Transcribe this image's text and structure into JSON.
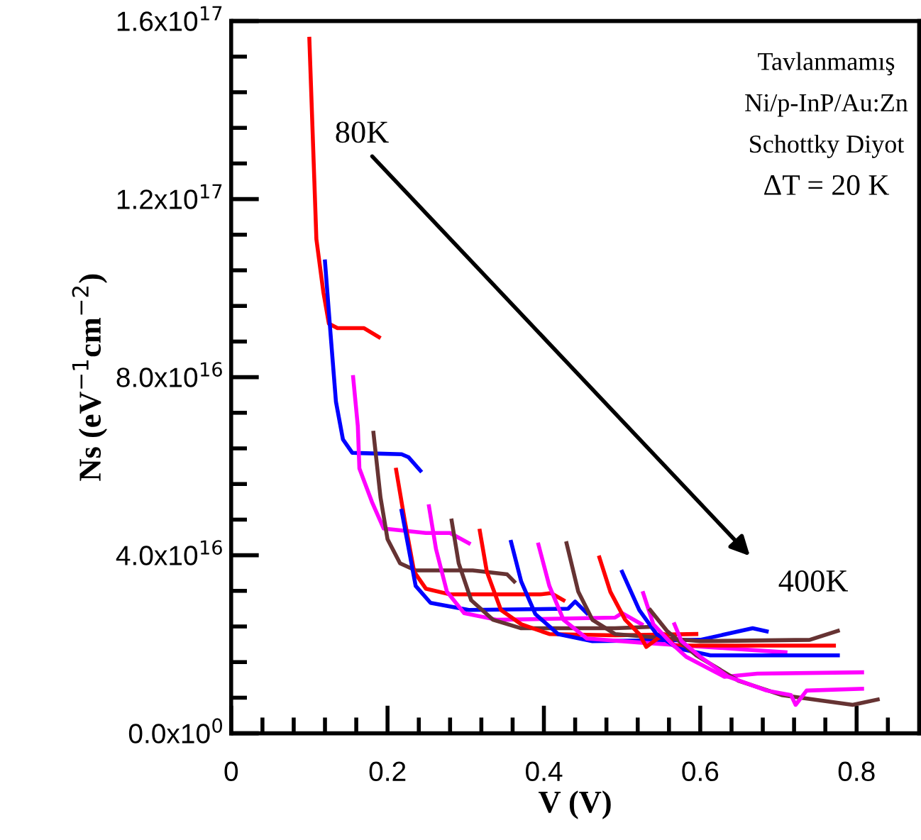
{
  "chart_data": {
    "type": "line",
    "xlabel": "V (V)",
    "ylabel": "Ns (eV$^{−1}$cm$^{−2}$)",
    "xlim": [
      0,
      0.88
    ],
    "ylim": [
      0,
      1.6e+17
    ],
    "xticks": [
      0,
      {
        "value": 0.04,
        "label": null
      },
      {
        "value": 0.08,
        "label": null
      },
      {
        "value": 0.12,
        "label": null
      },
      {
        "value": 0.16,
        "label": null
      },
      0.2,
      {
        "value": 0.24,
        "label": null
      },
      {
        "value": 0.28,
        "label": null
      },
      {
        "value": 0.32,
        "label": null
      },
      {
        "value": 0.36,
        "label": null
      },
      0.4,
      {
        "value": 0.44,
        "label": null
      },
      {
        "value": 0.48,
        "label": null
      },
      {
        "value": 0.52,
        "label": null
      },
      {
        "value": 0.56,
        "label": null
      },
      0.6,
      {
        "value": 0.64,
        "label": null
      },
      {
        "value": 0.68,
        "label": null
      },
      {
        "value": 0.72,
        "label": null
      },
      {
        "value": 0.76,
        "label": null
      },
      0.8,
      {
        "value": 0.84,
        "label": null
      }
    ],
    "yticks": [
      {
        "value": 0,
        "label": "0.0x10$^{0}$"
      },
      {
        "value": 8000000000000000.0,
        "label": null
      },
      {
        "value": 1.6e+16,
        "label": null
      },
      {
        "value": 2.4e+16,
        "label": null
      },
      {
        "value": 3.2e+16,
        "label": null
      },
      {
        "value": 4e+16,
        "label": "4.0x10$^{16}$"
      },
      {
        "value": 4.8e+16,
        "label": null
      },
      {
        "value": 5.6e+16,
        "label": null
      },
      {
        "value": 6.4e+16,
        "label": null
      },
      {
        "value": 7.2e+16,
        "label": null
      },
      {
        "value": 8e+16,
        "label": "8.0x10$^{16}$"
      },
      {
        "value": 8.8e+16,
        "label": null
      },
      {
        "value": 9.6e+16,
        "label": null
      },
      {
        "value": 1.04e+17,
        "label": null
      },
      {
        "value": 1.12e+17,
        "label": null
      },
      {
        "value": 1.2e+17,
        "label": "1.2x10$^{17}$"
      },
      {
        "value": 1.28e+17,
        "label": null
      },
      {
        "value": 1.36e+17,
        "label": null
      },
      {
        "value": 1.44e+17,
        "label": null
      },
      {
        "value": 1.52e+17,
        "label": null
      },
      {
        "value": 1.6e+17,
        "label": "1.6x10$^{17}$"
      }
    ],
    "grid": false,
    "legend": false,
    "marker": "none",
    "line_style": "solid",
    "annotations": [
      "Tavlanmamış",
      "Ni/p-InP/Au:Zn",
      "Schottky Diyot",
      "ΔT = 20 K",
      "80K",
      "400K"
    ],
    "series": [
      {
        "color": "#ff0000",
        "x": [
          0.1,
          0.109,
          0.118,
          0.125,
          0.136,
          0.17,
          0.189
        ],
        "values": [
          1.56e+17,
          1.11e+17,
          9.9e+16,
          9.2e+16,
          9.1e+16,
          9.1e+16,
          8.9e+16
        ]
      },
      {
        "color": "#0000ff",
        "x": [
          0.12,
          0.127,
          0.134,
          0.143,
          0.155,
          0.218,
          0.227,
          0.242
        ],
        "values": [
          1.06e+17,
          9e+16,
          7.45e+16,
          6.6e+16,
          6.3e+16,
          6.27e+16,
          6.2e+16,
          5.9e+16
        ]
      },
      {
        "color": "#ff00ff",
        "x": [
          0.156,
          0.162,
          0.164,
          0.18,
          0.195,
          0.249,
          0.28,
          0.304
        ],
        "values": [
          8e+16,
          6.9e+16,
          5.95e+16,
          5.2e+16,
          4.6e+16,
          4.5e+16,
          4.5e+16,
          4.27e+16
        ]
      },
      {
        "color": "#663333",
        "x": [
          0.182,
          0.191,
          0.2,
          0.216,
          0.236,
          0.309,
          0.353,
          0.362
        ],
        "values": [
          6.75e+16,
          5.3e+16,
          4.36e+16,
          3.82e+16,
          3.66e+16,
          3.66e+16,
          3.57e+16,
          3.41e+16
        ]
      },
      {
        "color": "#ff0000",
        "x": [
          0.211,
          0.222,
          0.234,
          0.249,
          0.28,
          0.395,
          0.409,
          0.425
        ],
        "values": [
          5.92e+16,
          4.78e+16,
          3.63e+16,
          3.25e+16,
          3.12e+16,
          3.12e+16,
          3.15e+16,
          2.99e+16
        ]
      },
      {
        "color": "#0000ff",
        "x": [
          0.218,
          0.236,
          0.255,
          0.304,
          0.431,
          0.44,
          0.455
        ],
        "values": [
          5e+16,
          3.31e+16,
          2.93e+16,
          2.77e+16,
          2.8e+16,
          2.96e+16,
          2.7e+16
        ]
      },
      {
        "color": "#ff00ff",
        "x": [
          0.253,
          0.262,
          0.276,
          0.298,
          0.34,
          0.491,
          0.5,
          0.525
        ],
        "values": [
          5.1e+16,
          4.14e+16,
          3.18e+16,
          2.7e+16,
          2.55e+16,
          2.6e+16,
          2.7e+16,
          2.45e+16
        ]
      },
      {
        "color": "#663333",
        "x": [
          0.282,
          0.291,
          0.307,
          0.335,
          0.371,
          0.491,
          0.536
        ],
        "values": [
          4.78e+16,
          3.82e+16,
          2.99e+16,
          2.55e+16,
          2.36e+16,
          2.36e+16,
          2.39e+16
        ]
      },
      {
        "color": "#ff0000",
        "x": [
          0.318,
          0.327,
          0.345,
          0.371,
          0.407,
          0.491,
          0.595
        ],
        "values": [
          4.55e+16,
          3.63e+16,
          2.77e+16,
          2.45e+16,
          2.23e+16,
          2.2e+16,
          2.23e+16
        ]
      },
      {
        "color": "#0000ff",
        "x": [
          0.358,
          0.371,
          0.389,
          0.418,
          0.462,
          0.6,
          0.667,
          0.685
        ],
        "values": [
          4.3e+16,
          3.41e+16,
          2.68e+16,
          2.23e+16,
          2.07e+16,
          2.1e+16,
          2.36e+16,
          2.29e+16
        ]
      },
      {
        "color": "#ff00ff",
        "x": [
          0.393,
          0.407,
          0.425,
          0.455,
          0.522,
          0.709
        ],
        "values": [
          4.24e+16,
          3.31e+16,
          2.55e+16,
          2.13e+16,
          2.04e+16,
          1.82e+16
        ]
      },
      {
        "color": "#663333",
        "x": [
          0.429,
          0.444,
          0.462,
          0.491,
          0.6,
          0.74,
          0.776
        ],
        "values": [
          4.27e+16,
          3.18e+16,
          2.55e+16,
          2.23e+16,
          2.07e+16,
          2.1e+16,
          2.3e+16
        ]
      },
      {
        "color": "#ff0000",
        "x": [
          0.471,
          0.485,
          0.504,
          0.522,
          0.531,
          0.553,
          0.567,
          0.771
        ],
        "values": [
          3.95e+16,
          3.18e+16,
          2.55e+16,
          2.23e+16,
          1.94e+16,
          2.23e+16,
          1.97e+16,
          1.97e+16
        ]
      },
      {
        "color": "#0000ff",
        "x": [
          0.5,
          0.522,
          0.544,
          0.571,
          0.613,
          0.776
        ],
        "values": [
          3.63e+16,
          2.77e+16,
          2.23e+16,
          1.91e+16,
          1.75e+16,
          1.75e+16
        ]
      },
      {
        "color": "#ff00ff",
        "x": [
          0.527,
          0.54,
          0.562,
          0.582,
          0.631,
          0.673,
          0.807
        ],
        "values": [
          3.15e+16,
          2.45e+16,
          2.04e+16,
          1.72e+16,
          1.27e+16,
          1.34e+16,
          1.37e+16
        ]
      },
      {
        "color": "#663333",
        "x": [
          0.536,
          0.558,
          0.595,
          0.649,
          0.704,
          0.795,
          0.827
        ],
        "values": [
          2.77e+16,
          2.29e+16,
          1.75e+16,
          1.18e+16,
          8600000000000000.0,
          6400000000000000.0,
          7600000000000000.0
        ]
      },
      {
        "color": "#ff00ff",
        "x": [
          0.567,
          0.576,
          0.6,
          0.636,
          0.685,
          0.716,
          0.722,
          0.736,
          0.807
        ],
        "values": [
          2.45e+16,
          2.07e+16,
          1.72e+16,
          1.27e+16,
          9600000000000000.0,
          8600000000000000.0,
          6400000000000000.0,
          9600000000000000.0,
          1e+16
        ]
      }
    ]
  }
}
